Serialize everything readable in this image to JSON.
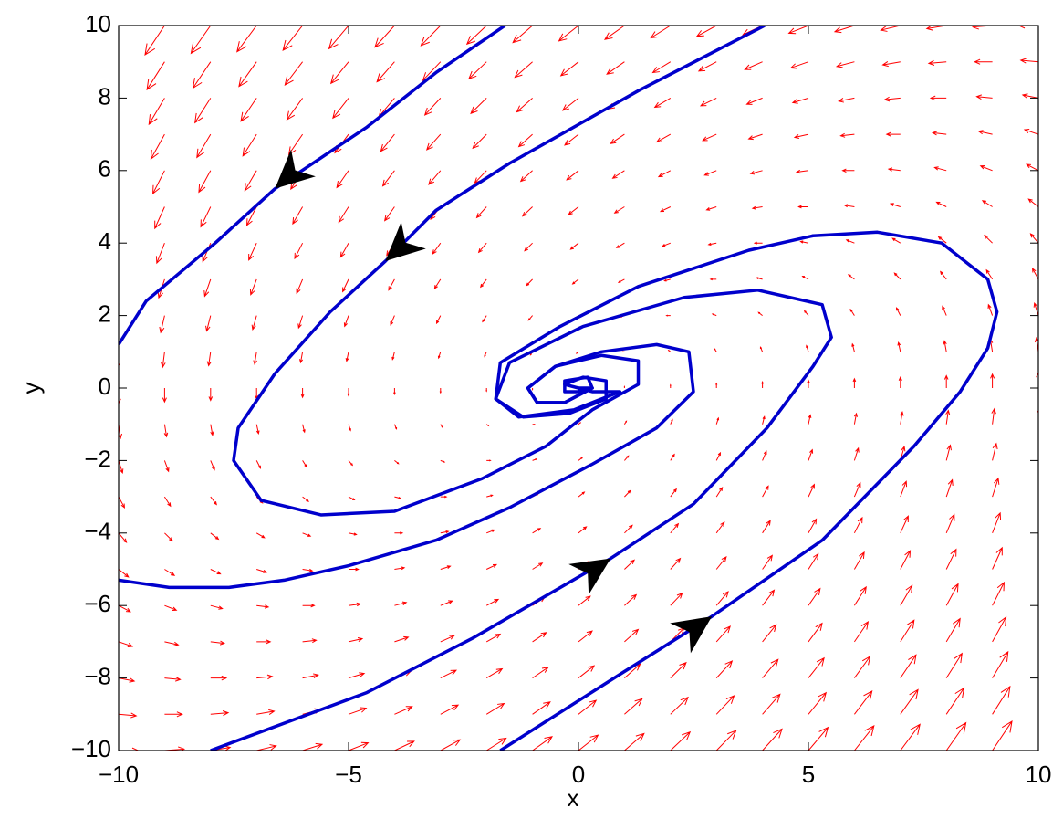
{
  "chart_data": {
    "type": "quiver",
    "xlabel": "x",
    "ylabel": "y",
    "xlim": [
      -10,
      10
    ],
    "ylim": [
      -10,
      10
    ],
    "xticks": [
      {
        "value": -10,
        "label": "−10"
      },
      {
        "value": -5,
        "label": "−5"
      },
      0,
      5,
      10
    ],
    "yticks": [
      {
        "value": -10,
        "label": "−10"
      },
      {
        "value": -8,
        "label": "−8"
      },
      {
        "value": -6,
        "label": "−6"
      },
      {
        "value": -4,
        "label": "−4"
      },
      {
        "value": -2,
        "label": "−2"
      },
      0,
      2,
      4,
      6,
      8,
      10
    ],
    "field": {
      "color": "#ff0000",
      "x": [
        -10,
        -9,
        -8,
        -7,
        -6,
        -5,
        -4,
        -3,
        -2,
        -1,
        0,
        1,
        2,
        3,
        4,
        5,
        6,
        7,
        8,
        9,
        10
      ],
      "y": [
        -10,
        -9,
        -8,
        -7,
        -6,
        -5,
        -4,
        -3,
        -2,
        -1,
        0,
        1,
        2,
        3,
        4,
        5,
        6,
        7,
        8,
        9,
        10
      ],
      "u": [
        [
          10,
          10,
          10,
          10,
          10,
          10,
          10,
          10,
          10,
          10,
          10,
          10,
          10,
          10,
          10,
          10,
          10,
          10,
          10,
          10,
          10
        ],
        [
          9,
          9,
          9,
          9,
          9,
          9,
          9,
          9,
          9,
          9,
          9,
          9,
          9,
          9,
          9,
          9,
          9,
          9,
          9,
          9,
          9
        ],
        [
          8,
          8,
          8,
          8,
          8,
          8,
          8,
          8,
          8,
          8,
          8,
          8,
          8,
          8,
          8,
          8,
          8,
          8,
          8,
          8,
          8
        ],
        [
          7,
          7,
          7,
          7,
          7,
          7,
          7,
          7,
          7,
          7,
          7,
          7,
          7,
          7,
          7,
          7,
          7,
          7,
          7,
          7,
          7
        ],
        [
          6,
          6,
          6,
          6,
          6,
          6,
          6,
          6,
          6,
          6,
          6,
          6,
          6,
          6,
          6,
          6,
          6,
          6,
          6,
          6,
          6
        ],
        [
          5,
          5,
          5,
          5,
          5,
          5,
          5,
          5,
          5,
          5,
          5,
          5,
          5,
          5,
          5,
          5,
          5,
          5,
          5,
          5,
          5
        ],
        [
          4,
          4,
          4,
          4,
          4,
          4,
          4,
          4,
          4,
          4,
          4,
          4,
          4,
          4,
          4,
          4,
          4,
          4,
          4,
          4,
          4
        ],
        [
          3,
          3,
          3,
          3,
          3,
          3,
          3,
          3,
          3,
          3,
          3,
          3,
          3,
          3,
          3,
          3,
          3,
          3,
          3,
          3,
          3
        ],
        [
          2,
          2,
          2,
          2,
          2,
          2,
          2,
          2,
          2,
          2,
          2,
          2,
          2,
          2,
          2,
          2,
          2,
          2,
          2,
          2,
          2
        ],
        [
          1,
          1,
          1,
          1,
          1,
          1,
          1,
          1,
          1,
          1,
          1,
          1,
          1,
          1,
          1,
          1,
          1,
          1,
          1,
          1,
          1
        ],
        [
          0,
          0,
          0,
          0,
          0,
          0,
          0,
          0,
          0,
          0,
          0,
          0,
          0,
          0,
          0,
          0,
          0,
          0,
          0,
          0,
          0
        ],
        [
          -1,
          -1,
          -1,
          -1,
          -1,
          -1,
          -1,
          -1,
          -1,
          -1,
          -1,
          -1,
          -1,
          -1,
          -1,
          -1,
          -1,
          -1,
          -1,
          -1,
          -1
        ],
        [
          -2,
          -2,
          -2,
          -2,
          -2,
          -2,
          -2,
          -2,
          -2,
          -2,
          -2,
          -2,
          -2,
          -2,
          -2,
          -2,
          -2,
          -2,
          -2,
          -2,
          -2
        ],
        [
          -3,
          -3,
          -3,
          -3,
          -3,
          -3,
          -3,
          -3,
          -3,
          -3,
          -3,
          -3,
          -3,
          -3,
          -3,
          -3,
          -3,
          -3,
          -3,
          -3,
          -3
        ],
        [
          -4,
          -4,
          -4,
          -4,
          -4,
          -4,
          -4,
          -4,
          -4,
          -4,
          -4,
          -4,
          -4,
          -4,
          -4,
          -4,
          -4,
          -4,
          -4,
          -4,
          -4
        ],
        [
          -5,
          -5,
          -5,
          -5,
          -5,
          -5,
          -5,
          -5,
          -5,
          -5,
          -5,
          -5,
          -5,
          -5,
          -5,
          -5,
          -5,
          -5,
          -5,
          -5,
          -5
        ],
        [
          -6,
          -6,
          -6,
          -6,
          -6,
          -6,
          -6,
          -6,
          -6,
          -6,
          -6,
          -6,
          -6,
          -6,
          -6,
          -6,
          -6,
          -6,
          -6,
          -6,
          -6
        ],
        [
          -7,
          -7,
          -7,
          -7,
          -7,
          -7,
          -7,
          -7,
          -7,
          -7,
          -7,
          -7,
          -7,
          -7,
          -7,
          -7,
          -7,
          -7,
          -7,
          -7,
          -7
        ],
        [
          -8,
          -8,
          -8,
          -8,
          -8,
          -8,
          -8,
          -8,
          -8,
          -8,
          -8,
          -8,
          -8,
          -8,
          -8,
          -8,
          -8,
          -8,
          -8,
          -8,
          -8
        ],
        [
          -9,
          -9,
          -9,
          -9,
          -9,
          -9,
          -9,
          -9,
          -9,
          -9,
          -9,
          -9,
          -9,
          -9,
          -9,
          -9,
          -9,
          -9,
          -9,
          -9,
          -9
        ],
        [
          -10,
          -10,
          -10,
          -10,
          -10,
          -10,
          -10,
          -10,
          -10,
          -10,
          -10,
          -10,
          -10,
          -10,
          -10,
          -10,
          -10,
          -10,
          -10,
          -10,
          -10
        ]
      ],
      "v": [
        [
          0,
          1,
          2,
          3,
          4,
          5,
          6,
          7,
          8,
          9,
          10,
          11,
          12,
          13,
          14,
          15,
          16,
          17,
          18,
          19,
          20
        ],
        [
          -1,
          0,
          1,
          2,
          3,
          4,
          5,
          6,
          7,
          8,
          9,
          10,
          11,
          12,
          13,
          14,
          15,
          16,
          17,
          18,
          19
        ],
        [
          -2,
          -1,
          0,
          1,
          2,
          3,
          4,
          5,
          6,
          7,
          8,
          9,
          10,
          11,
          12,
          13,
          14,
          15,
          16,
          17,
          18
        ],
        [
          -3,
          -2,
          -1,
          0,
          1,
          2,
          3,
          4,
          5,
          6,
          7,
          8,
          9,
          10,
          11,
          12,
          13,
          14,
          15,
          16,
          17
        ],
        [
          -4,
          -3,
          -2,
          -1,
          0,
          1,
          2,
          3,
          4,
          5,
          6,
          7,
          8,
          9,
          10,
          11,
          12,
          13,
          14,
          15,
          16
        ],
        [
          -5,
          -4,
          -3,
          -2,
          -1,
          0,
          1,
          2,
          3,
          4,
          5,
          6,
          7,
          8,
          9,
          10,
          11,
          12,
          13,
          14,
          15
        ],
        [
          -6,
          -5,
          -4,
          -3,
          -2,
          -1,
          0,
          1,
          2,
          3,
          4,
          5,
          6,
          7,
          8,
          9,
          10,
          11,
          12,
          13,
          14
        ],
        [
          -7,
          -6,
          -5,
          -4,
          -3,
          -2,
          -1,
          0,
          1,
          2,
          3,
          4,
          5,
          6,
          7,
          8,
          9,
          10,
          11,
          12,
          13
        ],
        [
          -8,
          -7,
          -6,
          -5,
          -4,
          -3,
          -2,
          -1,
          0,
          1,
          2,
          3,
          4,
          5,
          6,
          7,
          8,
          9,
          10,
          11,
          12
        ],
        [
          -9,
          -8,
          -7,
          -6,
          -5,
          -4,
          -3,
          -2,
          -1,
          0,
          1,
          2,
          3,
          4,
          5,
          6,
          7,
          8,
          9,
          10,
          11
        ],
        [
          -10,
          -9,
          -8,
          -7,
          -6,
          -5,
          -4,
          -3,
          -2,
          -1,
          0,
          1,
          2,
          3,
          4,
          5,
          6,
          7,
          8,
          9,
          10
        ],
        [
          -11,
          -10,
          -9,
          -8,
          -7,
          -6,
          -5,
          -4,
          -3,
          -2,
          -1,
          0,
          1,
          2,
          3,
          4,
          5,
          6,
          7,
          8,
          9
        ],
        [
          -12,
          -11,
          -10,
          -9,
          -8,
          -7,
          -6,
          -5,
          -4,
          -3,
          -2,
          -1,
          0,
          1,
          2,
          3,
          4,
          5,
          6,
          7,
          8
        ],
        [
          -13,
          -12,
          -11,
          -10,
          -9,
          -8,
          -7,
          -6,
          -5,
          -4,
          -3,
          -2,
          -1,
          0,
          1,
          2,
          3,
          4,
          5,
          6,
          7
        ],
        [
          -14,
          -13,
          -12,
          -11,
          -10,
          -9,
          -8,
          -7,
          -6,
          -5,
          -4,
          -3,
          -2,
          -1,
          0,
          1,
          2,
          3,
          4,
          5,
          6
        ],
        [
          -15,
          -14,
          -13,
          -12,
          -11,
          -10,
          -9,
          -8,
          -7,
          -6,
          -5,
          -4,
          -3,
          -2,
          -1,
          0,
          1,
          2,
          3,
          4,
          5
        ],
        [
          -16,
          -15,
          -14,
          -13,
          -12,
          -11,
          -10,
          -9,
          -8,
          -7,
          -6,
          -5,
          -4,
          -3,
          -2,
          -1,
          0,
          1,
          2,
          3,
          4
        ],
        [
          -17,
          -16,
          -15,
          -14,
          -13,
          -12,
          -11,
          -10,
          -9,
          -8,
          -7,
          -6,
          -5,
          -4,
          -3,
          -2,
          -1,
          0,
          1,
          2,
          3
        ],
        [
          -18,
          -17,
          -16,
          -15,
          -14,
          -13,
          -12,
          -11,
          -10,
          -9,
          -8,
          -7,
          -6,
          -5,
          -4,
          -3,
          -2,
          -1,
          0,
          1,
          2
        ],
        [
          -19,
          -18,
          -17,
          -16,
          -15,
          -14,
          -13,
          -12,
          -11,
          -10,
          -9,
          -8,
          -7,
          -6,
          -5,
          -4,
          -3,
          -2,
          -1,
          0,
          1
        ],
        [
          -20,
          -19,
          -18,
          -17,
          -16,
          -15,
          -14,
          -13,
          -12,
          -11,
          -10,
          -9,
          -8,
          -7,
          -6,
          -5,
          -4,
          -3,
          -2,
          -1,
          0
        ]
      ]
    },
    "series": [
      {
        "color": "#0000cc",
        "x": [
          -1.6,
          -3.1,
          -4.6,
          -6.6,
          -7.9,
          -9.4,
          -10
        ],
        "y": [
          10,
          8.7,
          7.2,
          5.5,
          4.0,
          2.4,
          1.2
        ]
      },
      {
        "color": "#0000cc",
        "x": [
          4.05,
          1.3,
          -1.5,
          -3.1,
          -4.2,
          -5.4,
          -6.6,
          -7.4,
          -7.5,
          -6.9,
          -5.6,
          -4.0,
          -2.1,
          -0.7,
          0.3,
          1.3,
          1.3,
          0.5,
          -0.5,
          -1.1,
          -0.9,
          -0.3,
          0.3,
          0
        ],
        "y": [
          10,
          8.2,
          6.2,
          4.9,
          3.5,
          2.1,
          0.4,
          -1.1,
          -2.0,
          -3.1,
          -3.5,
          -3.4,
          -2.5,
          -1.6,
          -0.6,
          0.1,
          0.75,
          0.9,
          0.6,
          0.0,
          -0.4,
          -0.4,
          0.0,
          0
        ]
      },
      {
        "color": "#0000cc",
        "x": [
          -8,
          -4.6,
          -2.3,
          0.7,
          2.5,
          4.1,
          5.1,
          5.5,
          5.3,
          3.9,
          2.3,
          0.1,
          -1.5,
          -1.8,
          -1.3,
          -0.1,
          0.9,
          0.3,
          0
        ],
        "y": [
          -10,
          -8.4,
          -6.9,
          -4.7,
          -3.2,
          -1.1,
          0.6,
          1.4,
          2.3,
          2.7,
          2.5,
          1.7,
          0.7,
          -0.3,
          -0.8,
          -0.6,
          -0.1,
          -0.1,
          0
        ]
      },
      {
        "color": "#0000cc",
        "x": [
          -1.7,
          0.9,
          2.9,
          5.3,
          7.3,
          8.3,
          8.9,
          9.1,
          8.9,
          7.9,
          6.5,
          5.1,
          3.7,
          1.3,
          -0.4,
          -1.7,
          -1.8,
          -1.2,
          -0.2,
          0.6,
          0.6,
          0.1,
          -0.3,
          0
        ],
        "y": [
          -10,
          -7.9,
          -6.3,
          -4.2,
          -1.6,
          -0.1,
          1.1,
          2.1,
          3.0,
          4.0,
          4.3,
          4.2,
          3.8,
          2.8,
          1.7,
          0.7,
          -0.3,
          -0.8,
          -0.7,
          -0.3,
          0.2,
          0.3,
          0.1,
          0
        ]
      },
      {
        "color": "#0000cc",
        "x": [
          -10,
          -8.9,
          -7.6,
          -6.4,
          -5.0,
          -3.1,
          -1.5,
          0.3,
          1.7,
          2.5,
          2.4,
          1.7,
          0.5,
          -0.5,
          -1.1,
          -0.9,
          -0.3,
          0.3,
          0.2,
          -0.3,
          -0.3,
          0.1,
          0
        ],
        "y": [
          -5.3,
          -5.5,
          -5.5,
          -5.3,
          -4.9,
          -4.2,
          -3.3,
          -2.1,
          -1.1,
          -0.1,
          1.0,
          1.2,
          1.0,
          0.6,
          0.0,
          -0.4,
          -0.4,
          0.0,
          0.3,
          0.2,
          -0.1,
          -0.1,
          0
        ]
      }
    ]
  }
}
